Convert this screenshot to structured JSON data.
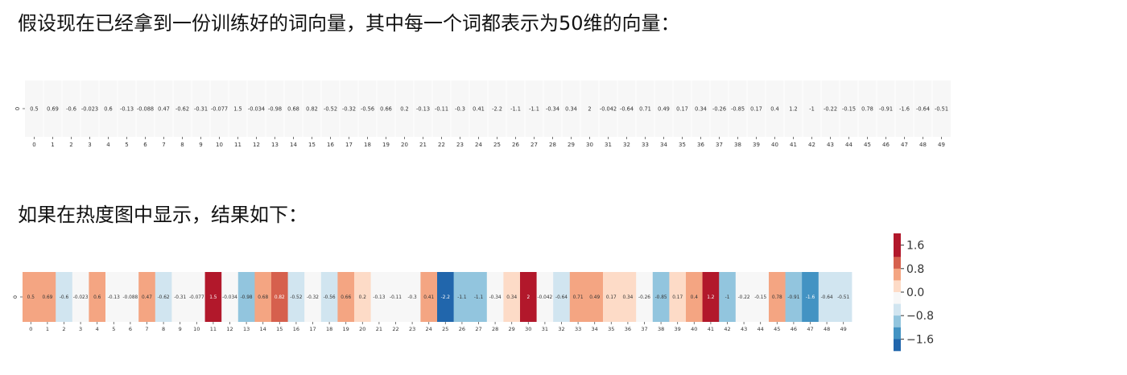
{
  "intro_text": "假设现在已经拿到一份训练好的词向量，其中每一个词都表示为50维的向量：",
  "heatmap_intro_text": "如果在热度图中显示，结果如下：",
  "chart_data": [
    {
      "type": "table",
      "row_labels": [
        "0"
      ],
      "columns": [
        "0",
        "1",
        "2",
        "3",
        "4",
        "5",
        "6",
        "7",
        "8",
        "9",
        "10",
        "11",
        "12",
        "13",
        "14",
        "15",
        "16",
        "17",
        "18",
        "19",
        "20",
        "21",
        "22",
        "23",
        "24",
        "25",
        "26",
        "27",
        "28",
        "29",
        "30",
        "31",
        "32",
        "33",
        "34",
        "35",
        "36",
        "37",
        "38",
        "39",
        "40",
        "41",
        "42",
        "43",
        "44",
        "45",
        "46",
        "47",
        "48",
        "49"
      ],
      "cells": [
        "0.5",
        "0.69",
        "-0.6",
        "-0.023",
        "0.6",
        "-0.13",
        "-0.088",
        "0.47",
        "-0.62",
        "-0.31",
        "-0.077",
        "1.5",
        "-0.034",
        "-0.98",
        "0.68",
        "0.82",
        "-0.52",
        "-0.32",
        "-0.56",
        "0.66",
        "0.2",
        "-0.13",
        "-0.11",
        "-0.3",
        "0.41",
        "-2.2",
        "-1.1",
        "-1.1",
        "-0.34",
        "0.34",
        "2",
        "-0.042",
        "-0.64",
        "0.71",
        "0.49",
        "0.17",
        "0.34",
        "-0.26",
        "-0.85",
        "0.17",
        "0.4",
        "1.2",
        "-1",
        "-0.22",
        "-0.15",
        "0.78",
        "-0.91",
        "-1.6",
        "-0.64",
        "-0.51"
      ],
      "background": "#f7f7f7"
    },
    {
      "type": "heatmap",
      "row_labels": [
        "0"
      ],
      "columns": [
        "0",
        "1",
        "2",
        "3",
        "4",
        "5",
        "6",
        "7",
        "8",
        "9",
        "10",
        "11",
        "12",
        "13",
        "14",
        "15",
        "16",
        "17",
        "18",
        "19",
        "20",
        "21",
        "22",
        "23",
        "24",
        "25",
        "26",
        "27",
        "28",
        "29",
        "30",
        "31",
        "32",
        "33",
        "34",
        "35",
        "36",
        "37",
        "38",
        "39",
        "40",
        "41",
        "42",
        "43",
        "44",
        "45",
        "46",
        "47",
        "48",
        "49"
      ],
      "values": [
        0.5,
        0.69,
        -0.6,
        -0.023,
        0.6,
        -0.13,
        -0.088,
        0.47,
        -0.62,
        -0.31,
        -0.077,
        1.5,
        -0.034,
        -0.98,
        0.68,
        0.82,
        -0.52,
        -0.32,
        -0.56,
        0.66,
        0.2,
        -0.13,
        -0.11,
        -0.3,
        0.41,
        -2.2,
        -1.1,
        -1.1,
        -0.34,
        0.34,
        2,
        -0.042,
        -0.64,
        0.71,
        0.49,
        0.17,
        0.34,
        -0.26,
        -0.85,
        0.17,
        0.4,
        1.2,
        -1,
        -0.22,
        -0.15,
        0.78,
        -0.91,
        -1.6,
        -0.64,
        -0.51
      ],
      "cell_labels": [
        "0.5",
        "0.69",
        "-0.6",
        "-0.023",
        "0.6",
        "-0.13",
        "-0.088",
        "0.47",
        "-0.62",
        "-0.31",
        "-0.077",
        "1.5",
        "-0.034",
        "-0.98",
        "0.68",
        "0.82",
        "-0.52",
        "-0.32",
        "-0.56",
        "0.66",
        "0.2",
        "-0.13",
        "-0.11",
        "-0.3",
        "0.41",
        "-2.2",
        "-1.1",
        "-1.1",
        "-0.34",
        "0.34",
        "2",
        "-0.042",
        "-0.64",
        "0.71",
        "0.49",
        "0.17",
        "0.34",
        "-0.26",
        "-0.85",
        "0.17",
        "0.4",
        "1.2",
        "-1",
        "-0.22",
        "-0.15",
        "0.78",
        "-0.91",
        "-1.6",
        "-0.64",
        "-0.51"
      ],
      "colormap": {
        "name": "RdBu_r",
        "bins": [
          {
            "min": 1.2,
            "color": "#b2182b",
            "text_color": "#ffffff"
          },
          {
            "min": 0.8,
            "color": "#d6604d",
            "text_color": "#ffffff"
          },
          {
            "min": 0.4,
            "color": "#f4a582",
            "text_color": "#333333"
          },
          {
            "min": 0.0,
            "color": "#fddbc7",
            "text_color": "#333333"
          },
          {
            "min": -0.4,
            "color": "#f7f7f7",
            "text_color": "#333333"
          },
          {
            "min": -0.8,
            "color": "#d1e5f0",
            "text_color": "#333333"
          },
          {
            "min": -1.2,
            "color": "#92c5de",
            "text_color": "#333333"
          },
          {
            "min": -1.6,
            "color": "#4393c3",
            "text_color": "#ffffff"
          },
          {
            "min": -9999,
            "color": "#2166ac",
            "text_color": "#ffffff"
          }
        ]
      },
      "colorbar": {
        "range": [
          -2.0,
          2.0
        ],
        "ticks": [
          1.6,
          0.8,
          0.0,
          -0.8,
          -1.6
        ],
        "tick_labels": [
          "1.6",
          "0.8",
          "0.0",
          "−0.8",
          "−1.6"
        ],
        "segments": [
          {
            "from": 1.2,
            "to": 2.0,
            "color": "#b2182b"
          },
          {
            "from": 0.8,
            "to": 1.2,
            "color": "#d6604d"
          },
          {
            "from": 0.4,
            "to": 0.8,
            "color": "#f4a582"
          },
          {
            "from": 0.0,
            "to": 0.4,
            "color": "#fddbc7"
          },
          {
            "from": -0.4,
            "to": 0.0,
            "color": "#f7f7f7"
          },
          {
            "from": -0.8,
            "to": -0.4,
            "color": "#d1e5f0"
          },
          {
            "from": -1.2,
            "to": -0.8,
            "color": "#92c5de"
          },
          {
            "from": -1.6,
            "to": -1.2,
            "color": "#4393c3"
          },
          {
            "from": -2.0,
            "to": -1.6,
            "color": "#2166ac"
          }
        ]
      }
    }
  ]
}
